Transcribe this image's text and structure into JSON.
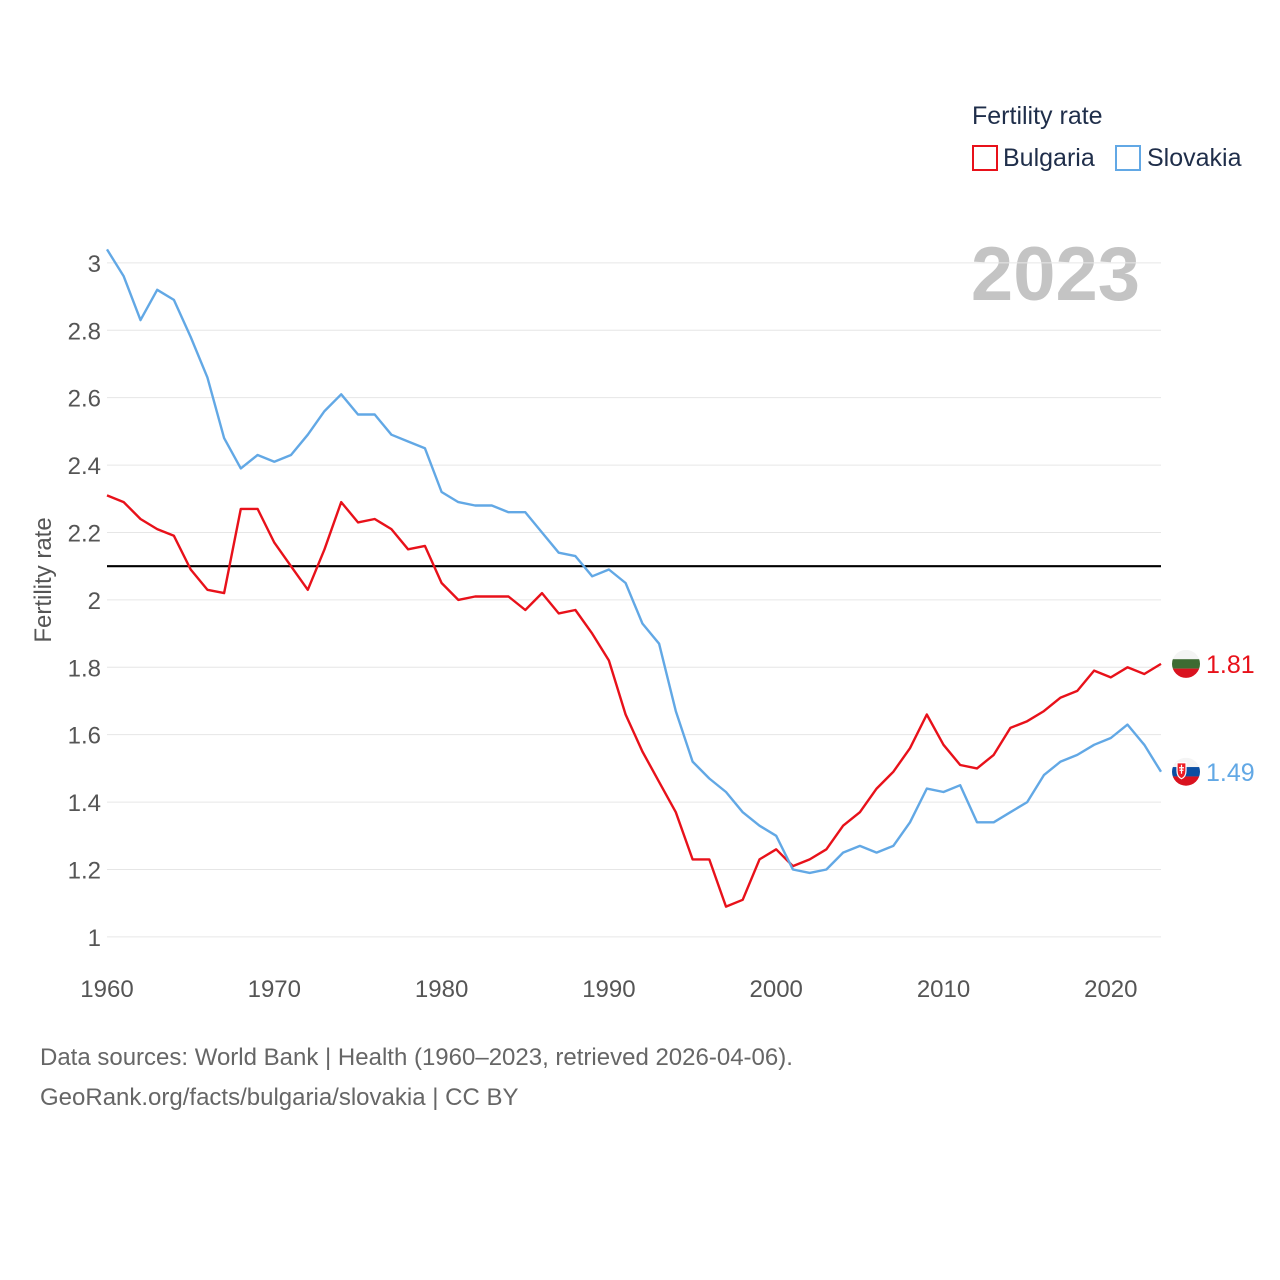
{
  "chart_data": {
    "type": "line",
    "legend_title": "Fertility rate",
    "ylabel": "Fertility rate",
    "xlabel": "",
    "year_label": "2023",
    "xlim": [
      1960,
      2023
    ],
    "ylim": [
      0.97,
      3.05
    ],
    "x_ticks": [
      1960,
      1970,
      1980,
      1990,
      2000,
      2010,
      2020
    ],
    "x_tick_labels": [
      "1960",
      "1970",
      "1980",
      "1990",
      "2000",
      "2010",
      "2020"
    ],
    "y_ticks": [
      1,
      1.2,
      1.4,
      1.6,
      1.8,
      2,
      2.2,
      2.4,
      2.6,
      2.8,
      3
    ],
    "y_tick_labels": [
      "1",
      "1.2",
      "1.4",
      "1.6",
      "1.8",
      "2",
      "2.2",
      "2.4",
      "2.6",
      "2.8",
      "3"
    ],
    "reference_line": 2.1,
    "legend_placement": "top-right",
    "x": [
      1960,
      1961,
      1962,
      1963,
      1964,
      1965,
      1966,
      1967,
      1968,
      1969,
      1970,
      1971,
      1972,
      1973,
      1974,
      1975,
      1976,
      1977,
      1978,
      1979,
      1980,
      1981,
      1982,
      1983,
      1984,
      1985,
      1986,
      1987,
      1988,
      1989,
      1990,
      1991,
      1992,
      1993,
      1994,
      1995,
      1996,
      1997,
      1998,
      1999,
      2000,
      2001,
      2002,
      2003,
      2004,
      2005,
      2006,
      2007,
      2008,
      2009,
      2010,
      2011,
      2012,
      2013,
      2014,
      2015,
      2016,
      2017,
      2018,
      2019,
      2020,
      2021,
      2022,
      2023
    ],
    "series": [
      {
        "name": "Bulgaria",
        "color": "#e8111a",
        "end_label": "1.81",
        "values": [
          2.31,
          2.29,
          2.24,
          2.21,
          2.19,
          2.09,
          2.03,
          2.02,
          2.27,
          2.27,
          2.17,
          2.1,
          2.03,
          2.15,
          2.29,
          2.23,
          2.24,
          2.21,
          2.15,
          2.16,
          2.05,
          2.0,
          2.01,
          2.01,
          2.01,
          1.97,
          2.02,
          1.96,
          1.97,
          1.9,
          1.82,
          1.66,
          1.55,
          1.46,
          1.37,
          1.23,
          1.23,
          1.09,
          1.11,
          1.23,
          1.26,
          1.21,
          1.23,
          1.26,
          1.33,
          1.37,
          1.44,
          1.49,
          1.56,
          1.66,
          1.57,
          1.51,
          1.5,
          1.54,
          1.62,
          1.64,
          1.67,
          1.71,
          1.73,
          1.79,
          1.77,
          1.8,
          1.78,
          1.81
        ]
      },
      {
        "name": "Slovakia",
        "color": "#62a8e5",
        "end_label": "1.49",
        "values": [
          3.04,
          2.96,
          2.83,
          2.92,
          2.89,
          2.78,
          2.66,
          2.48,
          2.39,
          2.43,
          2.41,
          2.43,
          2.49,
          2.56,
          2.61,
          2.55,
          2.55,
          2.49,
          2.47,
          2.45,
          2.32,
          2.29,
          2.28,
          2.28,
          2.26,
          2.26,
          2.2,
          2.14,
          2.13,
          2.07,
          2.09,
          2.05,
          1.93,
          1.87,
          1.67,
          1.52,
          1.47,
          1.43,
          1.37,
          1.33,
          1.3,
          1.2,
          1.19,
          1.2,
          1.25,
          1.27,
          1.25,
          1.27,
          1.34,
          1.44,
          1.43,
          1.45,
          1.34,
          1.34,
          1.37,
          1.4,
          1.48,
          1.52,
          1.54,
          1.57,
          1.59,
          1.63,
          1.57,
          1.49
        ]
      }
    ]
  },
  "footer": {
    "source_line": "Data sources: World Bank | Health (1960–2023, retrieved 2026-04-06).",
    "credit_line": "GeoRank.org/facts/bulgaria/slovakia | CC BY"
  },
  "colors": {
    "grid": "#e6e6e6",
    "reference": "#000000"
  }
}
